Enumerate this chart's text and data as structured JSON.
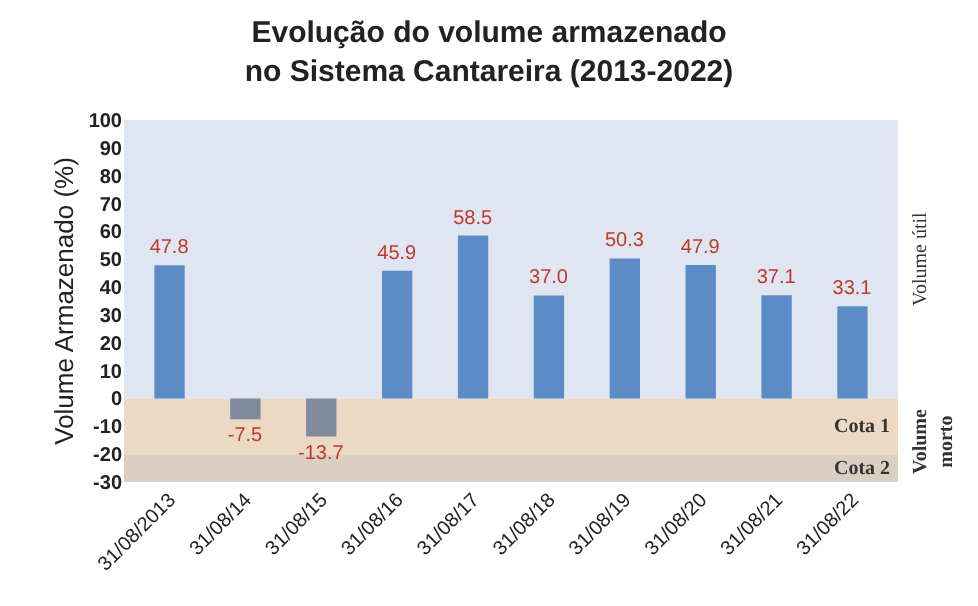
{
  "chart_data": {
    "type": "bar",
    "title": "Evolução do volume armazenado\nno Sistema Cantareira (2013-2022)",
    "ylabel": "Volume Armazenado (%)",
    "categories": [
      "31/08/2013",
      "31/08/14",
      "31/08/15",
      "31/08/16",
      "31/08/17",
      "31/08/18",
      "31/08/19",
      "31/08/20",
      "31/08/21",
      "31/08/22"
    ],
    "values": [
      47.8,
      -7.5,
      -13.7,
      45.9,
      58.5,
      37.0,
      50.3,
      47.9,
      37.1,
      33.1
    ],
    "colors": [
      "#5b8cc6",
      "#7f8a9c",
      "#7f8a9c",
      "#5b8cc6",
      "#5b8cc6",
      "#5b8cc6",
      "#5b8cc6",
      "#5b8cc6",
      "#5b8cc6",
      "#5b8cc6"
    ],
    "value_labels": [
      "47.8",
      "-7.5",
      "-13.7",
      "45.9",
      "58.5",
      "37.0",
      "50.3",
      "47.9",
      "37.1",
      "33.1"
    ],
    "ylim": [
      -30,
      100
    ],
    "yticks": [
      -30,
      -20,
      -10,
      0,
      10,
      20,
      30,
      40,
      50,
      60,
      70,
      80,
      90,
      100
    ],
    "grid": false,
    "legend": false,
    "bands": [
      {
        "axis": "y",
        "from": 0,
        "to": 100,
        "label": "Volume útil",
        "color": "#dfe6f1"
      },
      {
        "axis": "y",
        "from": -20,
        "to": 0,
        "label": "Cota 1",
        "color": "#ecd9c3"
      },
      {
        "axis": "y",
        "from": -30,
        "to": -20,
        "label": "Cota 2",
        "color": "#dbcfc3"
      }
    ],
    "annotations": [
      "Volume\nmorto"
    ]
  }
}
